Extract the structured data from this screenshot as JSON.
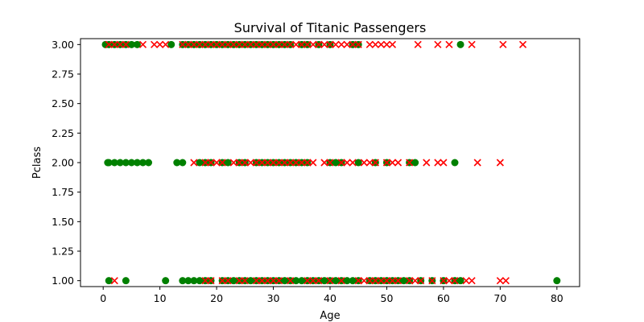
{
  "chart_data": {
    "type": "scatter",
    "title": "Survival of Titanic Passengers",
    "xlabel": "Age",
    "ylabel": "Pclass",
    "xlim": [
      -4,
      84
    ],
    "ylim": [
      0.95,
      3.05
    ],
    "xticks": [
      "0",
      "10",
      "20",
      "30",
      "40",
      "50",
      "60",
      "70",
      "80"
    ],
    "yticks": [
      "1.00",
      "1.25",
      "1.50",
      "1.75",
      "2.00",
      "2.25",
      "2.50",
      "2.75",
      "3.00"
    ],
    "grid": false,
    "colors": {
      "survived": "#008000",
      "died": "#ff0000"
    },
    "series": [
      {
        "marker": "circle",
        "color": "#008000",
        "points": [
          [
            0.4,
            3
          ],
          [
            1,
            3
          ],
          [
            2,
            3
          ],
          [
            3,
            3
          ],
          [
            4,
            3
          ],
          [
            5,
            3
          ],
          [
            6,
            3
          ],
          [
            12,
            3
          ],
          [
            14,
            3
          ],
          [
            15,
            3
          ],
          [
            16,
            3
          ],
          [
            17,
            3
          ],
          [
            18,
            3
          ],
          [
            19,
            3
          ],
          [
            20,
            3
          ],
          [
            21,
            3
          ],
          [
            22,
            3
          ],
          [
            23,
            3
          ],
          [
            24,
            3
          ],
          [
            25,
            3
          ],
          [
            26,
            3
          ],
          [
            27,
            3
          ],
          [
            28,
            3
          ],
          [
            29,
            3
          ],
          [
            30,
            3
          ],
          [
            31,
            3
          ],
          [
            32,
            3
          ],
          [
            33,
            3
          ],
          [
            35,
            3
          ],
          [
            36,
            3
          ],
          [
            38,
            3
          ],
          [
            40,
            3
          ],
          [
            44,
            3
          ],
          [
            45,
            3
          ],
          [
            63,
            3
          ],
          [
            0.8,
            2
          ],
          [
            1,
            2
          ],
          [
            2,
            2
          ],
          [
            3,
            2
          ],
          [
            4,
            2
          ],
          [
            5,
            2
          ],
          [
            6,
            2
          ],
          [
            7,
            2
          ],
          [
            8,
            2
          ],
          [
            13,
            2
          ],
          [
            14,
            2
          ],
          [
            17,
            2
          ],
          [
            18,
            2
          ],
          [
            19,
            2
          ],
          [
            21,
            2
          ],
          [
            22,
            2
          ],
          [
            24,
            2
          ],
          [
            25,
            2
          ],
          [
            27,
            2
          ],
          [
            28,
            2
          ],
          [
            29,
            2
          ],
          [
            30,
            2
          ],
          [
            31,
            2
          ],
          [
            32,
            2
          ],
          [
            33,
            2
          ],
          [
            34,
            2
          ],
          [
            35,
            2
          ],
          [
            36,
            2
          ],
          [
            40,
            2
          ],
          [
            41,
            2
          ],
          [
            42,
            2
          ],
          [
            45,
            2
          ],
          [
            48,
            2
          ],
          [
            50,
            2
          ],
          [
            54,
            2
          ],
          [
            55,
            2
          ],
          [
            62,
            2
          ],
          [
            1,
            1
          ],
          [
            4,
            1
          ],
          [
            11,
            1
          ],
          [
            14,
            1
          ],
          [
            15,
            1
          ],
          [
            16,
            1
          ],
          [
            17,
            1
          ],
          [
            18,
            1
          ],
          [
            19,
            1
          ],
          [
            21,
            1
          ],
          [
            22,
            1
          ],
          [
            23,
            1
          ],
          [
            24,
            1
          ],
          [
            25,
            1
          ],
          [
            26,
            1
          ],
          [
            27,
            1
          ],
          [
            28,
            1
          ],
          [
            29,
            1
          ],
          [
            30,
            1
          ],
          [
            31,
            1
          ],
          [
            32,
            1
          ],
          [
            33,
            1
          ],
          [
            34,
            1
          ],
          [
            35,
            1
          ],
          [
            36,
            1
          ],
          [
            37,
            1
          ],
          [
            38,
            1
          ],
          [
            39,
            1
          ],
          [
            40,
            1
          ],
          [
            41,
            1
          ],
          [
            42,
            1
          ],
          [
            43,
            1
          ],
          [
            44,
            1
          ],
          [
            45,
            1
          ],
          [
            47,
            1
          ],
          [
            48,
            1
          ],
          [
            49,
            1
          ],
          [
            50,
            1
          ],
          [
            51,
            1
          ],
          [
            52,
            1
          ],
          [
            53,
            1
          ],
          [
            54,
            1
          ],
          [
            56,
            1
          ],
          [
            58,
            1
          ],
          [
            60,
            1
          ],
          [
            62,
            1
          ],
          [
            63,
            1
          ],
          [
            80,
            1
          ]
        ]
      },
      {
        "marker": "x",
        "color": "#ff0000",
        "points": [
          [
            1,
            3
          ],
          [
            2,
            3
          ],
          [
            3,
            3
          ],
          [
            4,
            3
          ],
          [
            7,
            3
          ],
          [
            9,
            3
          ],
          [
            10,
            3
          ],
          [
            11,
            3
          ],
          [
            14,
            3
          ],
          [
            15,
            3
          ],
          [
            16,
            3
          ],
          [
            17,
            3
          ],
          [
            18,
            3
          ],
          [
            19,
            3
          ],
          [
            20,
            3
          ],
          [
            21,
            3
          ],
          [
            22,
            3
          ],
          [
            23,
            3
          ],
          [
            24,
            3
          ],
          [
            25,
            3
          ],
          [
            26,
            3
          ],
          [
            27,
            3
          ],
          [
            28,
            3
          ],
          [
            29,
            3
          ],
          [
            30,
            3
          ],
          [
            31,
            3
          ],
          [
            32,
            3
          ],
          [
            33,
            3
          ],
          [
            34,
            3
          ],
          [
            35,
            3
          ],
          [
            36,
            3
          ],
          [
            37,
            3
          ],
          [
            38,
            3
          ],
          [
            39,
            3
          ],
          [
            40,
            3
          ],
          [
            41,
            3
          ],
          [
            42,
            3
          ],
          [
            43,
            3
          ],
          [
            44,
            3
          ],
          [
            45,
            3
          ],
          [
            47,
            3
          ],
          [
            48,
            3
          ],
          [
            49,
            3
          ],
          [
            50,
            3
          ],
          [
            51,
            3
          ],
          [
            55.5,
            3
          ],
          [
            59,
            3
          ],
          [
            61,
            3
          ],
          [
            65,
            3
          ],
          [
            70.5,
            3
          ],
          [
            74,
            3
          ],
          [
            16,
            2
          ],
          [
            18,
            2
          ],
          [
            19,
            2
          ],
          [
            20,
            2
          ],
          [
            21,
            2
          ],
          [
            23,
            2
          ],
          [
            24,
            2
          ],
          [
            25,
            2
          ],
          [
            26,
            2
          ],
          [
            27,
            2
          ],
          [
            28,
            2
          ],
          [
            29,
            2
          ],
          [
            30,
            2
          ],
          [
            31,
            2
          ],
          [
            32,
            2
          ],
          [
            33,
            2
          ],
          [
            34,
            2
          ],
          [
            35,
            2
          ],
          [
            36,
            2
          ],
          [
            37,
            2
          ],
          [
            39,
            2
          ],
          [
            40,
            2
          ],
          [
            42,
            2
          ],
          [
            43,
            2
          ],
          [
            44,
            2
          ],
          [
            46,
            2
          ],
          [
            47,
            2
          ],
          [
            48,
            2
          ],
          [
            50,
            2
          ],
          [
            51,
            2
          ],
          [
            52,
            2
          ],
          [
            54,
            2
          ],
          [
            57,
            2
          ],
          [
            59,
            2
          ],
          [
            60,
            2
          ],
          [
            66,
            2
          ],
          [
            70,
            2
          ],
          [
            2,
            1
          ],
          [
            18,
            1
          ],
          [
            19,
            1
          ],
          [
            21,
            1
          ],
          [
            22,
            1
          ],
          [
            24,
            1
          ],
          [
            25,
            1
          ],
          [
            27,
            1
          ],
          [
            28,
            1
          ],
          [
            29,
            1
          ],
          [
            30,
            1
          ],
          [
            31,
            1
          ],
          [
            33,
            1
          ],
          [
            36,
            1
          ],
          [
            37,
            1
          ],
          [
            38,
            1
          ],
          [
            40,
            1
          ],
          [
            42,
            1
          ],
          [
            45,
            1
          ],
          [
            46,
            1
          ],
          [
            47,
            1
          ],
          [
            48,
            1
          ],
          [
            49,
            1
          ],
          [
            50,
            1
          ],
          [
            51,
            1
          ],
          [
            52,
            1
          ],
          [
            54,
            1
          ],
          [
            55,
            1
          ],
          [
            56,
            1
          ],
          [
            58,
            1
          ],
          [
            60,
            1
          ],
          [
            61,
            1
          ],
          [
            62,
            1
          ],
          [
            64,
            1
          ],
          [
            65,
            1
          ],
          [
            70,
            1
          ],
          [
            71,
            1
          ]
        ]
      }
    ]
  }
}
